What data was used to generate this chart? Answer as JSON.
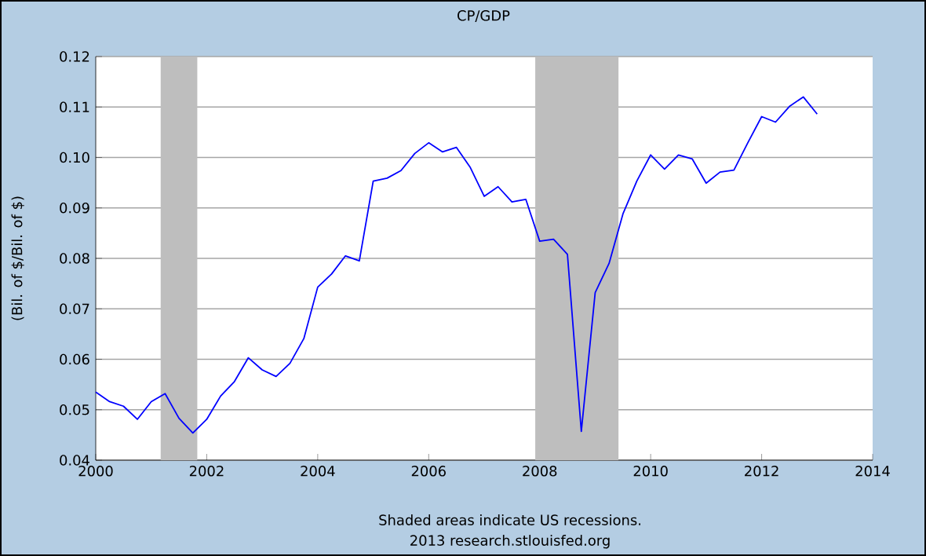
{
  "chart_data": {
    "type": "line",
    "title": "CP/GDP",
    "ylabel": "(Bil. of $/Bil. of $)",
    "x": [
      2000,
      2000.25,
      2000.5,
      2000.75,
      2001,
      2001.25,
      2001.5,
      2001.75,
      2002,
      2002.25,
      2002.5,
      2002.75,
      2003,
      2003.25,
      2003.5,
      2003.75,
      2004,
      2004.25,
      2004.5,
      2004.75,
      2005,
      2005.25,
      2005.5,
      2005.75,
      2006,
      2006.25,
      2006.5,
      2006.75,
      2007,
      2007.25,
      2007.5,
      2007.75,
      2008,
      2008.25,
      2008.5,
      2008.75,
      2009,
      2009.25,
      2009.5,
      2009.75,
      2010,
      2010.25,
      2010.5,
      2010.75,
      2011,
      2011.25,
      2011.5,
      2011.75,
      2012,
      2012.25,
      2012.5,
      2012.75,
      2013
    ],
    "series": [
      {
        "color": "#0000ff",
        "values": [
          0.0535,
          0.0516,
          0.0507,
          0.0481,
          0.0516,
          0.0532,
          0.0483,
          0.0454,
          0.0481,
          0.0527,
          0.0556,
          0.0603,
          0.0579,
          0.0566,
          0.0592,
          0.0641,
          0.0743,
          0.0769,
          0.0805,
          0.0795,
          0.0953,
          0.0959,
          0.0974,
          0.1008,
          0.1029,
          0.1011,
          0.102,
          0.098,
          0.0923,
          0.0942,
          0.0912,
          0.0917,
          0.0834,
          0.0838,
          0.0808,
          0.0457,
          0.0732,
          0.079,
          0.0888,
          0.0953,
          0.1005,
          0.0977,
          0.1005,
          0.0997,
          0.0949,
          0.0971,
          0.0975,
          0.1029,
          0.1081,
          0.107,
          0.1101,
          0.112,
          0.1086
        ]
      }
    ],
    "xlim": [
      2000,
      2014
    ],
    "ylim": [
      0.04,
      0.12
    ],
    "xticks": [
      2000,
      2002,
      2004,
      2006,
      2008,
      2010,
      2012,
      2014
    ],
    "yticks": [
      {
        "value": 0.04,
        "label": "0.04"
      },
      {
        "value": 0.05,
        "label": "0.05"
      },
      {
        "value": 0.06,
        "label": "0.06"
      },
      {
        "value": 0.07,
        "label": "0.07"
      },
      {
        "value": 0.08,
        "label": "0.08"
      },
      {
        "value": 0.09,
        "label": "0.09"
      },
      {
        "value": 0.1,
        "label": "0.10"
      },
      {
        "value": 0.11,
        "label": "0.11"
      },
      {
        "value": 0.12,
        "label": "0.12"
      }
    ],
    "bands": [
      {
        "axis": "x",
        "from": 2001.17,
        "to": 2001.83,
        "color": "#bebebe"
      },
      {
        "axis": "x",
        "from": 2007.92,
        "to": 2009.42,
        "color": "#bebebe"
      }
    ],
    "grid": "y",
    "annotations": [
      "Shaded areas indicate US recessions.",
      "2013 research.stlouisfed.org"
    ]
  }
}
